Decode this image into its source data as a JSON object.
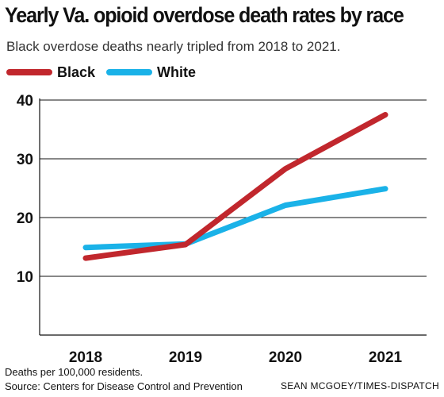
{
  "chart_data": {
    "type": "line",
    "title": "Yearly Va. opioid overdose death rates by race",
    "subtitle": "Black overdose deaths nearly tripled from 2018 to 2021.",
    "categories": [
      "2018",
      "2019",
      "2020",
      "2021"
    ],
    "series": [
      {
        "name": "Black",
        "color": "#c1272d",
        "values": [
          13.1,
          15.4,
          28.3,
          37.5
        ]
      },
      {
        "name": "White",
        "color": "#1ab2e8",
        "values": [
          14.9,
          15.5,
          22.1,
          24.9
        ]
      }
    ],
    "ylim": [
      0,
      40
    ],
    "yticks": [
      10,
      20,
      30,
      40
    ],
    "grid": "horizontal",
    "legend": "top-left"
  },
  "footer": {
    "note": "Deaths per 100,000 residents.",
    "source": "Source: Centers for Disease Control and Prevention",
    "credit": "SEAN MCGOEY/TIMES-DISPATCH"
  }
}
